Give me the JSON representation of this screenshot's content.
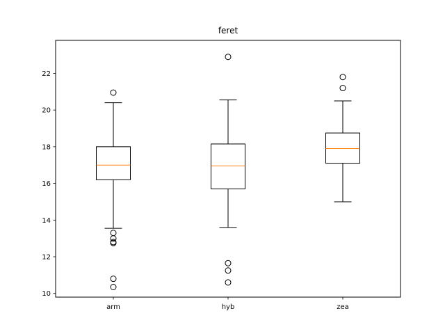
{
  "chart_data": {
    "type": "box",
    "title": "feret",
    "xlabel": "",
    "ylabel": "",
    "categories": [
      "arm",
      "hyb",
      "zea"
    ],
    "ylim": [
      9.8,
      23.8
    ],
    "yticks": [
      10,
      12,
      14,
      16,
      18,
      20,
      22
    ],
    "ytick_labels": [
      "10",
      "12",
      "14",
      "16",
      "18",
      "20",
      "22"
    ],
    "grid": false,
    "colors": {
      "box": "#000000",
      "median": "#ff7f0e",
      "axes": "#000000",
      "background": "#ffffff"
    },
    "boxes": [
      {
        "name": "arm",
        "whislo": 13.55,
        "q1": 16.2,
        "median": 17.0,
        "q3": 18.0,
        "whishi": 20.4,
        "fliers": [
          20.95,
          13.3,
          13.0,
          12.8,
          12.75,
          10.8,
          10.35
        ]
      },
      {
        "name": "hyb",
        "whislo": 13.6,
        "q1": 15.7,
        "median": 16.95,
        "q3": 18.15,
        "whishi": 20.55,
        "fliers": [
          22.9,
          11.65,
          11.25,
          10.6
        ]
      },
      {
        "name": "zea",
        "whislo": 15.0,
        "q1": 17.1,
        "median": 17.9,
        "q3": 18.75,
        "whishi": 20.5,
        "fliers": [
          21.8,
          21.2
        ]
      }
    ]
  }
}
